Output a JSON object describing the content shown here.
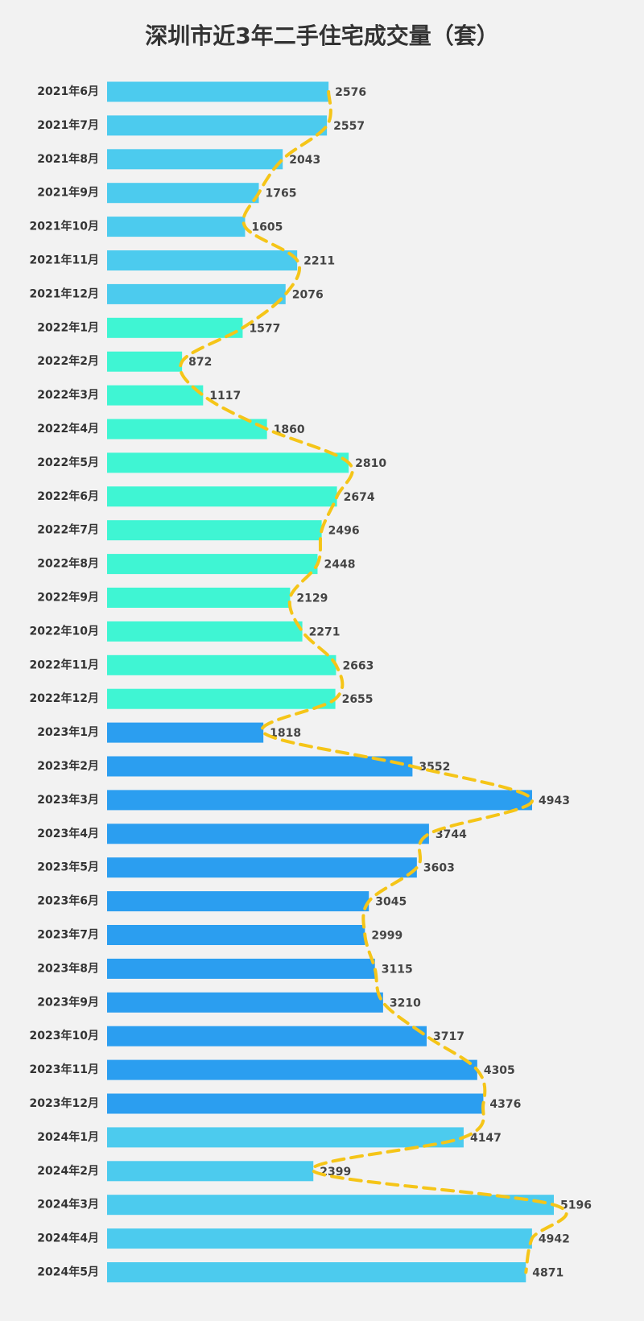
{
  "chart_data": {
    "type": "hbar",
    "title": "深圳市近3年二手住宅成交量（套）",
    "categories": [
      "2021年6月",
      "2021年7月",
      "2021年8月",
      "2021年9月",
      "2021年10月",
      "2021年11月",
      "2021年12月",
      "2022年1月",
      "2022年2月",
      "2022年3月",
      "2022年4月",
      "2022年5月",
      "2022年6月",
      "2022年7月",
      "2022年8月",
      "2022年9月",
      "2022年10月",
      "2022年11月",
      "2022年12月",
      "2023年1月",
      "2023年2月",
      "2023年3月",
      "2023年4月",
      "2023年5月",
      "2023年6月",
      "2023年7月",
      "2023年8月",
      "2023年9月",
      "2023年10月",
      "2023年11月",
      "2023年12月",
      "2024年1月",
      "2024年2月",
      "2024年3月",
      "2024年4月",
      "2024年5月"
    ],
    "values": [
      2576,
      2557,
      2043,
      1765,
      1605,
      2211,
      2076,
      1577,
      872,
      1117,
      1860,
      2810,
      2674,
      2496,
      2448,
      2129,
      2271,
      2663,
      2655,
      1818,
      3552,
      4943,
      3744,
      3603,
      3045,
      2999,
      3115,
      3210,
      3717,
      4305,
      4376,
      4147,
      2399,
      5196,
      4942,
      4871
    ],
    "colors": [
      "#4ccbee",
      "#4ccbee",
      "#4ccbee",
      "#4ccbee",
      "#4ccbee",
      "#4ccbee",
      "#4ccbee",
      "#3ff5d3",
      "#3ff5d3",
      "#3ff5d3",
      "#3ff5d3",
      "#3ff5d3",
      "#3ff5d3",
      "#3ff5d3",
      "#3ff5d3",
      "#3ff5d3",
      "#3ff5d3",
      "#3ff5d3",
      "#3ff5d3",
      "#2b9ef0",
      "#2b9ef0",
      "#2b9ef0",
      "#2b9ef0",
      "#2b9ef0",
      "#2b9ef0",
      "#2b9ef0",
      "#2b9ef0",
      "#2b9ef0",
      "#2b9ef0",
      "#2b9ef0",
      "#2b9ef0",
      "#4ccbee",
      "#4ccbee",
      "#4ccbee",
      "#4ccbee",
      "#4ccbee"
    ],
    "trend_color": "#f5c518"
  }
}
